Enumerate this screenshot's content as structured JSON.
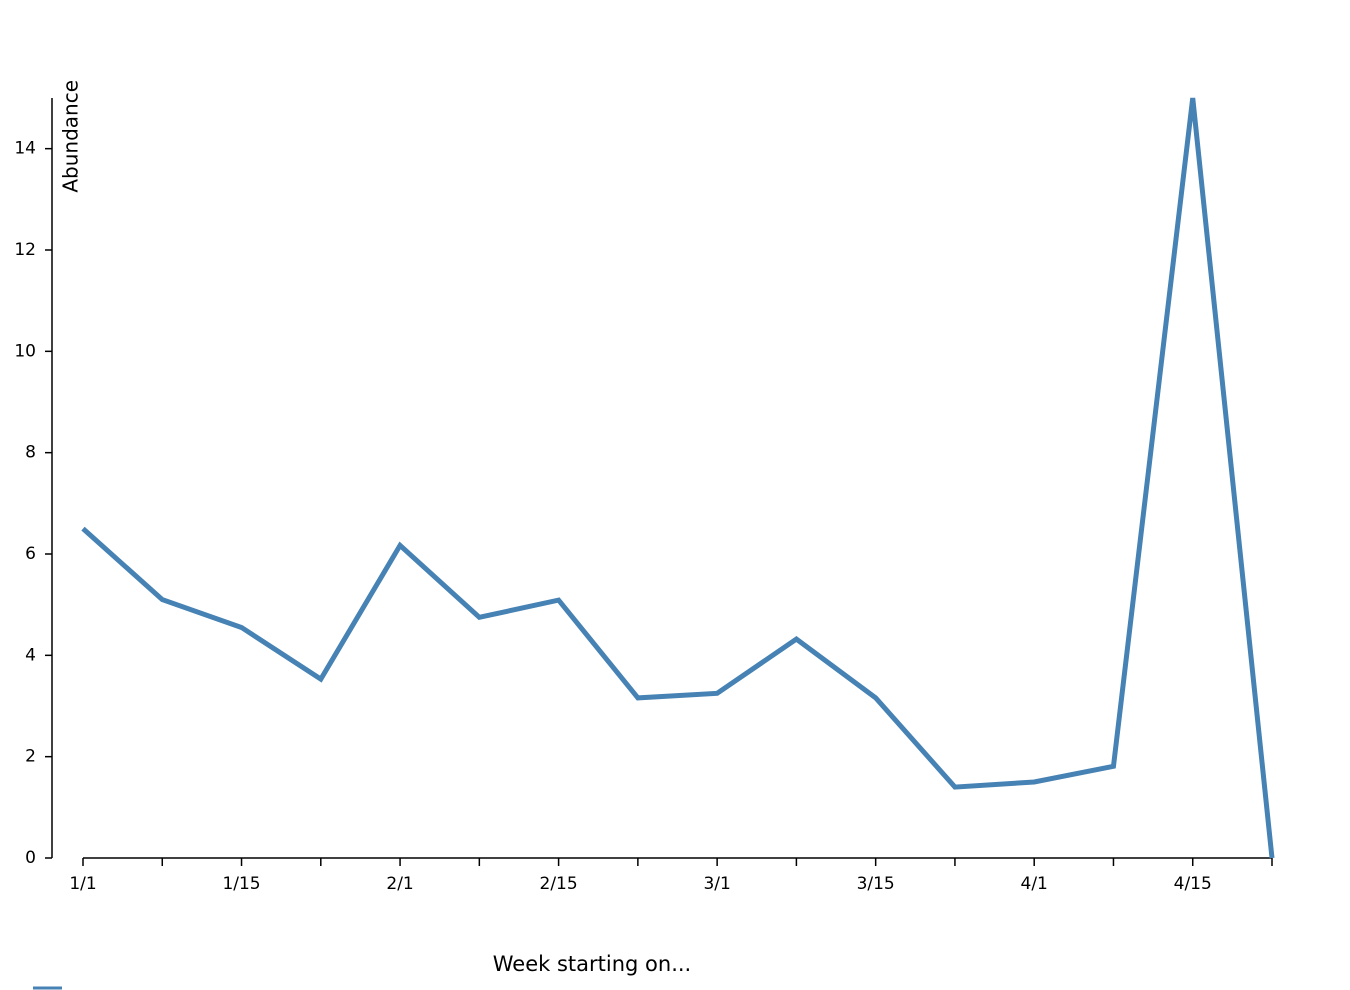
{
  "chart_data": {
    "type": "line",
    "x_label": "Week starting on...",
    "y_label": "Abundance",
    "categories": [
      "1/1",
      null,
      "1/15",
      null,
      "2/1",
      null,
      "2/15",
      null,
      "3/1",
      null,
      "3/15",
      null,
      "4/1",
      null,
      "4/15",
      null
    ],
    "series": [
      {
        "color": "#4682b4",
        "values": [
          6.5,
          5.1,
          4.55,
          3.53,
          6.17,
          4.75,
          5.09,
          3.16,
          3.25,
          4.32,
          3.16,
          1.4,
          1.5,
          1.81,
          15,
          0
        ]
      }
    ],
    "ylim": [
      0,
      15
    ],
    "yticks": [
      0,
      2,
      4,
      6,
      8,
      10,
      12,
      14
    ]
  }
}
